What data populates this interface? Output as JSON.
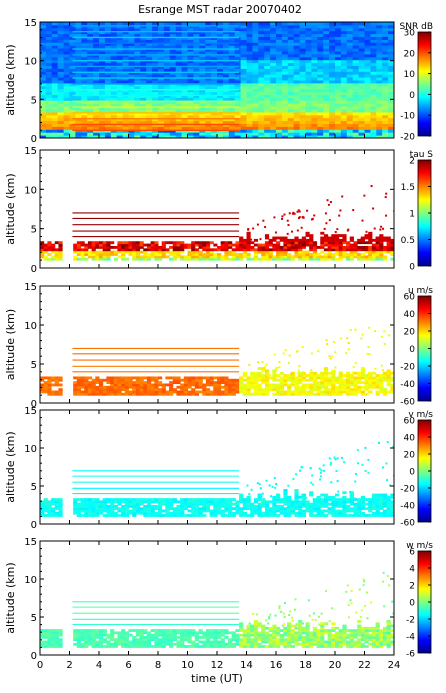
{
  "chart_data": [
    {
      "type": "heatmap",
      "title": "Esrange MST radar 20070402",
      "ylabel": "altitude (km)",
      "ylim": [
        0,
        15
      ],
      "xlim": [
        0,
        24
      ],
      "yticks": [
        "0",
        "5",
        "10",
        "15"
      ],
      "colorbar": {
        "label": "SNR dB",
        "range": [
          -20,
          30
        ],
        "ticks": [
          "-20",
          "-10",
          "0",
          "10",
          "20",
          "30"
        ]
      }
    },
    {
      "type": "heatmap",
      "ylabel": "altitude (km)",
      "ylim": [
        0,
        15
      ],
      "xlim": [
        0,
        24
      ],
      "yticks": [
        "0",
        "5",
        "10",
        "15"
      ],
      "colorbar": {
        "label": "tau S",
        "range": [
          0,
          2
        ],
        "ticks": [
          "0",
          "0.5",
          "1",
          "1.5",
          "2"
        ]
      }
    },
    {
      "type": "heatmap",
      "ylabel": "altitude (km)",
      "ylim": [
        0,
        15
      ],
      "xlim": [
        0,
        24
      ],
      "yticks": [
        "0",
        "5",
        "10",
        "15"
      ],
      "colorbar": {
        "label": "u m/s",
        "range": [
          -60,
          60
        ],
        "ticks": [
          "-60",
          "-40",
          "-20",
          "0",
          "20",
          "40",
          "60"
        ]
      }
    },
    {
      "type": "heatmap",
      "ylabel": "altitude (km)",
      "ylim": [
        0,
        15
      ],
      "xlim": [
        0,
        24
      ],
      "yticks": [
        "0",
        "5",
        "10",
        "15"
      ],
      "colorbar": {
        "label": "v m/s",
        "range": [
          -60,
          60
        ],
        "ticks": [
          "-60",
          "-40",
          "-20",
          "0",
          "20",
          "40",
          "60"
        ]
      }
    },
    {
      "type": "heatmap",
      "ylabel": "altitude (km)",
      "xlabel": "time (UT)",
      "ylim": [
        0,
        15
      ],
      "xlim": [
        0,
        24
      ],
      "yticks": [
        "0",
        "5",
        "10",
        "15"
      ],
      "xticks": [
        "0",
        "2",
        "4",
        "6",
        "8",
        "10",
        "12",
        "14",
        "16",
        "18",
        "20",
        "22",
        "24"
      ],
      "colorbar": {
        "label": "w m/s",
        "range": [
          -6,
          6
        ],
        "ticks": [
          "-6",
          "-4",
          "-2",
          "0",
          "2",
          "4",
          "6"
        ]
      }
    }
  ]
}
